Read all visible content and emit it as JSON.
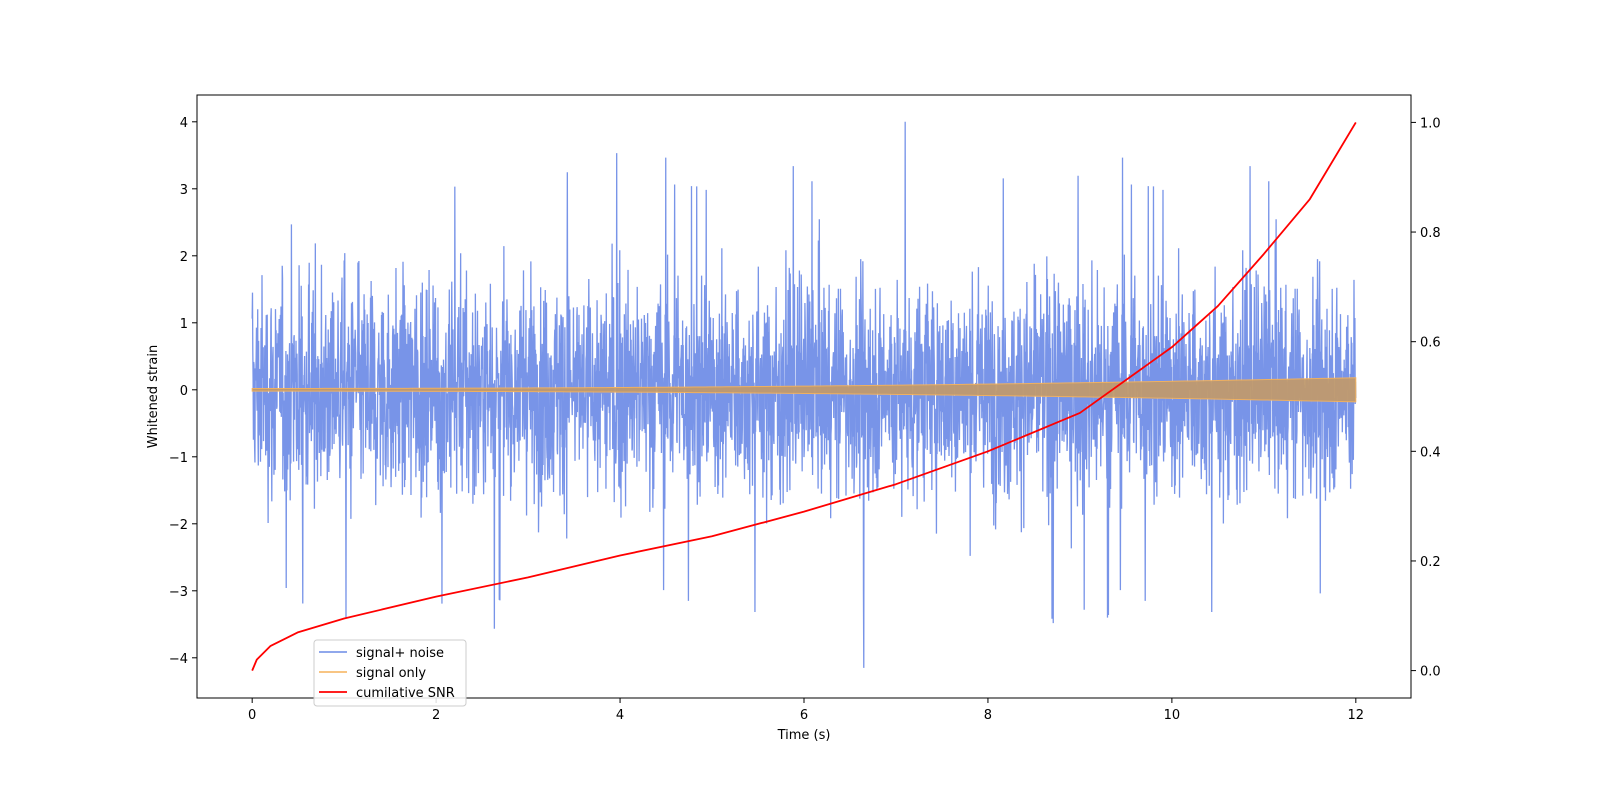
{
  "chart_data": {
    "type": "line",
    "title": "",
    "xlabel": "Time (s)",
    "ylabel": "Whitened strain",
    "y2label": "",
    "xlim": [
      -0.6,
      12.6
    ],
    "ylim": [
      -4.6,
      4.4
    ],
    "y2lim": [
      -0.05,
      1.05
    ],
    "xticks": [
      0,
      2,
      4,
      6,
      8,
      10,
      12
    ],
    "yticks": [
      -4,
      -3,
      -2,
      -1,
      0,
      1,
      2,
      3,
      4
    ],
    "y2ticks": [
      0.0,
      0.2,
      0.4,
      0.6,
      0.8,
      1.0
    ],
    "xtick_labels": [
      "0",
      "2",
      "4",
      "6",
      "8",
      "10",
      "12"
    ],
    "ytick_labels": [
      "−4",
      "−3",
      "−2",
      "−1",
      "0",
      "1",
      "2",
      "3",
      "4"
    ],
    "y2tick_labels": [
      "0.0",
      "0.2",
      "0.4",
      "0.6",
      "0.8",
      "1.0"
    ],
    "grid": false,
    "legend_position": "lower-left",
    "series": [
      {
        "name": "signal+ noise",
        "color": "#6c8be6",
        "axis": "left",
        "kind": "noise",
        "x_range": [
          0,
          12
        ],
        "typical_amplitude": [
          -2.5,
          2.8
        ],
        "extremes": {
          "max": 4.0,
          "max_at": 7.1,
          "min": -4.15,
          "min_at": 6.65
        }
      },
      {
        "name": "signal only",
        "color": "#f5b25a",
        "axis": "left",
        "kind": "chirp",
        "x_range": [
          0,
          12
        ],
        "amplitude_start": 0.02,
        "amplitude_end": 0.18
      },
      {
        "name": "cumilative SNR",
        "color": "#ff0000",
        "axis": "right",
        "kind": "line",
        "x": [
          0,
          0.05,
          0.2,
          0.5,
          1,
          2,
          3,
          4,
          5,
          6,
          7,
          8,
          9,
          10,
          10.5,
          11,
          11.5,
          12
        ],
        "y": [
          0.0,
          0.02,
          0.045,
          0.07,
          0.095,
          0.135,
          0.17,
          0.21,
          0.245,
          0.29,
          0.34,
          0.4,
          0.47,
          0.59,
          0.665,
          0.76,
          0.86,
          1.0
        ]
      }
    ]
  }
}
